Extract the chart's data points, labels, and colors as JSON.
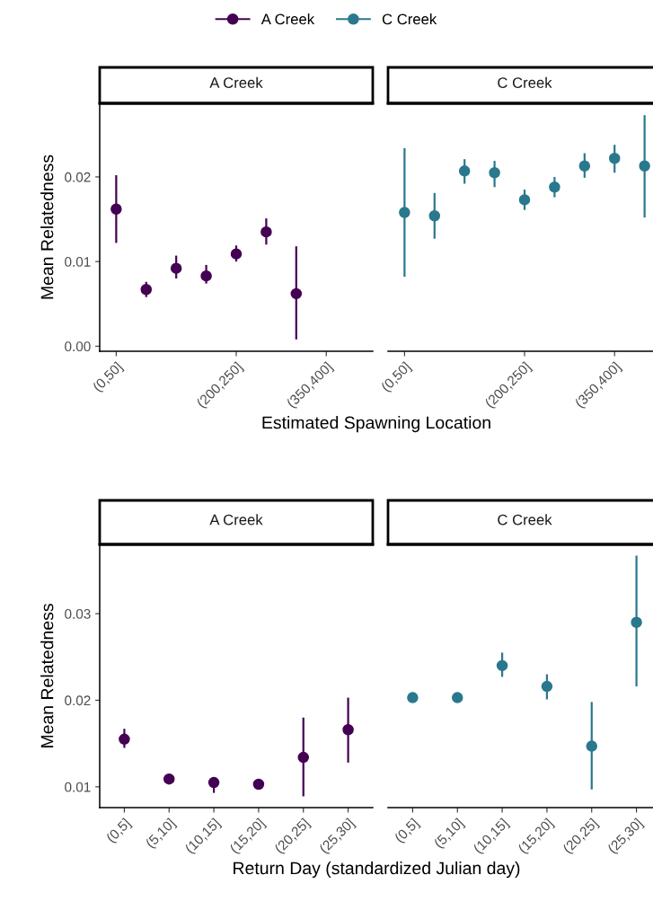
{
  "chart_data": [
    {
      "type": "scatter",
      "title": "A Creek",
      "ylabel": "Mean Relatedness",
      "xlabel": "Estimated Spawning Location",
      "legend": "top",
      "marker": "circle",
      "grid": false,
      "categories": [
        "(0,50]",
        null,
        null,
        null,
        "(200,250]",
        null,
        null,
        "(350,400]",
        null
      ],
      "ylim": [
        -0.0006,
        0.0287
      ],
      "yticks": [
        {
          "value": 0,
          "label": "0.00"
        },
        {
          "value": 0.01,
          "label": "0.01"
        },
        {
          "value": 0.02,
          "label": "0.02"
        }
      ],
      "series": [
        {
          "name": "A Creek",
          "color": "#440154",
          "values": [
            0.0162,
            0.0067,
            0.0092,
            0.0083,
            0.0109,
            0.0135,
            0.0062,
            null,
            null
          ],
          "errors": [
            [
              0.0122,
              0.0202
            ],
            [
              0.0058,
              0.0076
            ],
            [
              0.008,
              0.0107
            ],
            [
              0.0074,
              0.0096
            ],
            [
              0.01,
              0.0119
            ],
            [
              0.012,
              0.0151
            ],
            [
              0.0008,
              0.0118
            ],
            null,
            null
          ]
        }
      ]
    },
    {
      "type": "scatter",
      "title": "C Creek",
      "legend": "top",
      "marker": "circle",
      "grid": false,
      "tick_labels": "x",
      "categories": [
        "(0,50]",
        null,
        null,
        null,
        "(200,250]",
        null,
        null,
        "(350,400]",
        null
      ],
      "ylim": [
        -0.0006,
        0.0287
      ],
      "series": [
        {
          "name": "C Creek",
          "color": "#2a788e",
          "values": [
            0.0158,
            0.0154,
            0.0207,
            0.0205,
            0.0173,
            0.0188,
            0.0213,
            0.0222,
            0.0213
          ],
          "errors": [
            [
              0.0082,
              0.0234
            ],
            [
              0.0127,
              0.0181
            ],
            [
              0.0192,
              0.0221
            ],
            [
              0.0188,
              0.0219
            ],
            [
              0.0161,
              0.0185
            ],
            [
              0.0176,
              0.02
            ],
            [
              0.0199,
              0.0228
            ],
            [
              0.0205,
              0.0238
            ],
            [
              0.0152,
              0.0273
            ]
          ]
        }
      ]
    },
    {
      "type": "scatter",
      "title": "A Creek",
      "ylabel": "Mean Relatedness",
      "xlabel": "Return Day (standardized Julian day)",
      "marker": "circle",
      "grid": false,
      "categories": [
        "(0,5]",
        "(5,10]",
        "(10,15]",
        "(15,20]",
        "(20,25]",
        "(25,30]"
      ],
      "ylim": [
        0.0076,
        0.038
      ],
      "yticks": [
        {
          "value": 0.01,
          "label": "0.01"
        },
        {
          "value": 0.02,
          "label": "0.02"
        },
        {
          "value": 0.03,
          "label": "0.03"
        }
      ],
      "series": [
        {
          "color": "#440154",
          "values": [
            0.0155,
            0.0109,
            0.0105,
            0.0103,
            0.0134,
            0.0166
          ],
          "errors": [
            [
              0.0145,
              0.0167
            ],
            null,
            [
              0.0093,
              0.0108
            ],
            null,
            [
              0.0089,
              0.018
            ],
            [
              0.0128,
              0.0203
            ]
          ]
        }
      ]
    },
    {
      "type": "scatter",
      "title": "C Creek",
      "marker": "circle",
      "grid": false,
      "tick_labels": "x",
      "categories": [
        "(0,5]",
        "(5,10]",
        "(10,15]",
        "(15,20]",
        "(20,25]",
        "(25,30]"
      ],
      "ylim": [
        0.0076,
        0.038
      ],
      "series": [
        {
          "color": "#2a788e",
          "values": [
            0.0203,
            0.0203,
            0.024,
            0.0216,
            0.0147,
            0.029
          ],
          "errors": [
            null,
            null,
            [
              0.0227,
              0.0255
            ],
            [
              0.0201,
              0.023
            ],
            [
              0.0097,
              0.0198
            ],
            [
              0.0216,
              0.0367
            ]
          ]
        }
      ]
    }
  ]
}
